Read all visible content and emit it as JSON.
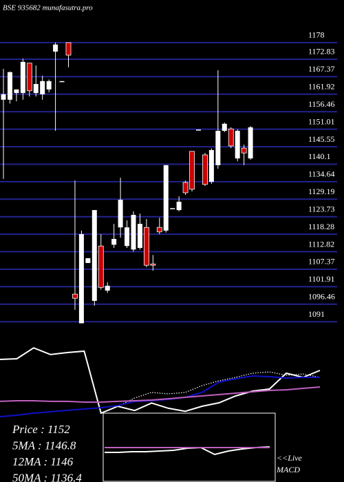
{
  "chart_data": [
    {
      "type": "candlestick",
      "title": "BSE 935682 munafasutra.pro",
      "open": [
        1160.2,
        1160.2,
        1162.3,
        1162.3,
        1171.6,
        1162.3,
        1161.9,
        1163.4,
        1175.2,
        1166,
        1178,
        1099.6,
        1090.5,
        1109.3,
        1097.5,
        1114.6,
        1100.7,
        1115,
        1120.4,
        1114.6,
        1113.5,
        1114,
        1120.4,
        1109,
        1120.4,
        1119.4,
        1126.4,
        1125.8,
        1134.4,
        1144.1,
        1150.9,
        1143,
        1134.6,
        1139.8,
        1150.5,
        1151.1,
        1141.9,
        1145.1,
        1141.9
      ],
      "high": [
        1169.8,
        1169,
        1163.4,
        1173,
        1171.6,
        1170.9,
        1167.7,
        1166.5,
        1178,
        1166,
        1178,
        1135,
        1119.4,
        1110.8,
        1125.8,
        1118.3,
        1103.3,
        1121.5,
        1135.9,
        1122.6,
        1125.4,
        1124.7,
        1123,
        1111.8,
        1123.4,
        1139.8,
        1126.4,
        1130.1,
        1135,
        1144.1,
        1150.9,
        1143.6,
        1145,
        1169.4,
        1153.1,
        1151.6,
        1151,
        1146.2,
        1152
      ],
      "low": [
        1135.5,
        1159,
        1159.7,
        1160.2,
        1161.2,
        1161.2,
        1160.2,
        1162.5,
        1150.5,
        1166,
        1170.3,
        1094.7,
        1090.5,
        1109.3,
        1096,
        1101,
        1100,
        1114,
        1117.2,
        1114,
        1112.8,
        1113.5,
        1108,
        1106.9,
        1118.3,
        1118.8,
        1126.4,
        1125.4,
        1130.5,
        1131.6,
        1150.9,
        1133.3,
        1134,
        1138.7,
        1150.1,
        1145.1,
        1141,
        1139.8,
        1141.5
      ],
      "close": [
        1161.9,
        1168.8,
        1163.4,
        1172,
        1163,
        1165.1,
        1166,
        1166,
        1177.4,
        1166,
        1174.1,
        1098.3,
        1118.3,
        1110.8,
        1125.8,
        1101.7,
        1102.2,
        1116.8,
        1129,
        1120.4,
        1124.3,
        1121.5,
        1108.6,
        1108.6,
        1119,
        1139.8,
        1126.4,
        1128.4,
        1131.2,
        1132.3,
        1150.9,
        1133.8,
        1144.5,
        1150.5,
        1152.7,
        1145.8,
        1150.5,
        1143.6,
        1151.6
      ],
      "ylim": [
        1090.4,
        1182.7
      ],
      "yticks": [
        1178,
        1172.83,
        1167.37,
        1161.92,
        1156.46,
        1151.01,
        1145.55,
        1140.1,
        1134.64,
        1129.19,
        1123.73,
        1118.28,
        1112.82,
        1107.37,
        1101.91,
        1096.46,
        1091
      ],
      "grid": true,
      "grid_color": "#23238f",
      "up_color": "#ffffff",
      "down_color": "#cc0000"
    },
    {
      "type": "line",
      "ylim": [
        1080,
        1200
      ],
      "series": [
        {
          "color": "#ffffff",
          "style": "solid",
          "values": [
            1170.5,
            1171.4,
            1186,
            1177,
            1179.7,
            1181.5,
            1098.5,
            1107.7,
            1102,
            1112,
            1105,
            1101,
            1107.7,
            1112.3,
            1121.5,
            1128,
            1130.8,
            1152,
            1146.5,
            1155.7
          ]
        },
        {
          "color": "#ffffff",
          "style": "dotted",
          "values": [
            null,
            null,
            null,
            null,
            null,
            null,
            1098.5,
            1107.7,
            1118.8,
            1126.2,
            1124.3,
            1126.2,
            1135.4,
            1141.8,
            1146.5,
            1152,
            1153.8,
            1149.2,
            1151,
            1146.5
          ]
        },
        {
          "color": "#1010c8",
          "style": "solid",
          "values": [
            1093.8,
            1095.7,
            1098.5,
            1100.3,
            1102.2,
            1104,
            1105.8,
            1108.6,
            1114.2,
            1115.1,
            1116.9,
            1119.7,
            1126.2,
            1140,
            1144.6,
            1148.3,
            1147.4,
            1145.5,
            1146.5,
            1146.5
          ]
        },
        {
          "color": "#c060c0",
          "style": "solid",
          "values": [
            1114.2,
            1115.1,
            1115.1,
            1114.2,
            1114.2,
            1113.2,
            1113.2,
            1114.2,
            1115.1,
            1116,
            1117.8,
            1119.7,
            1121.5,
            1123.4,
            1125.2,
            1127.1,
            1128.9,
            1129.8,
            1131.7,
            1133.5
          ]
        }
      ],
      "annotations": [
        "Price : 1152",
        "5MA : 1146.8",
        "12MA : 1146",
        "50MA : 1136.4"
      ]
    },
    {
      "type": "macd",
      "title": "<<Live MACD",
      "ylim": [
        -5,
        5
      ],
      "series": [
        {
          "color": "#ffffff",
          "values": [
            -0.7,
            -0.7,
            -0.6,
            -0.6,
            -0.5,
            -0.4,
            -0.1,
            0,
            -1,
            -0.5,
            -0.2,
            0,
            0.1
          ]
        },
        {
          "color": "#c060c0",
          "values": [
            0,
            0,
            0,
            0,
            0,
            0,
            0,
            0,
            0,
            0,
            0,
            0,
            0
          ]
        }
      ]
    }
  ]
}
